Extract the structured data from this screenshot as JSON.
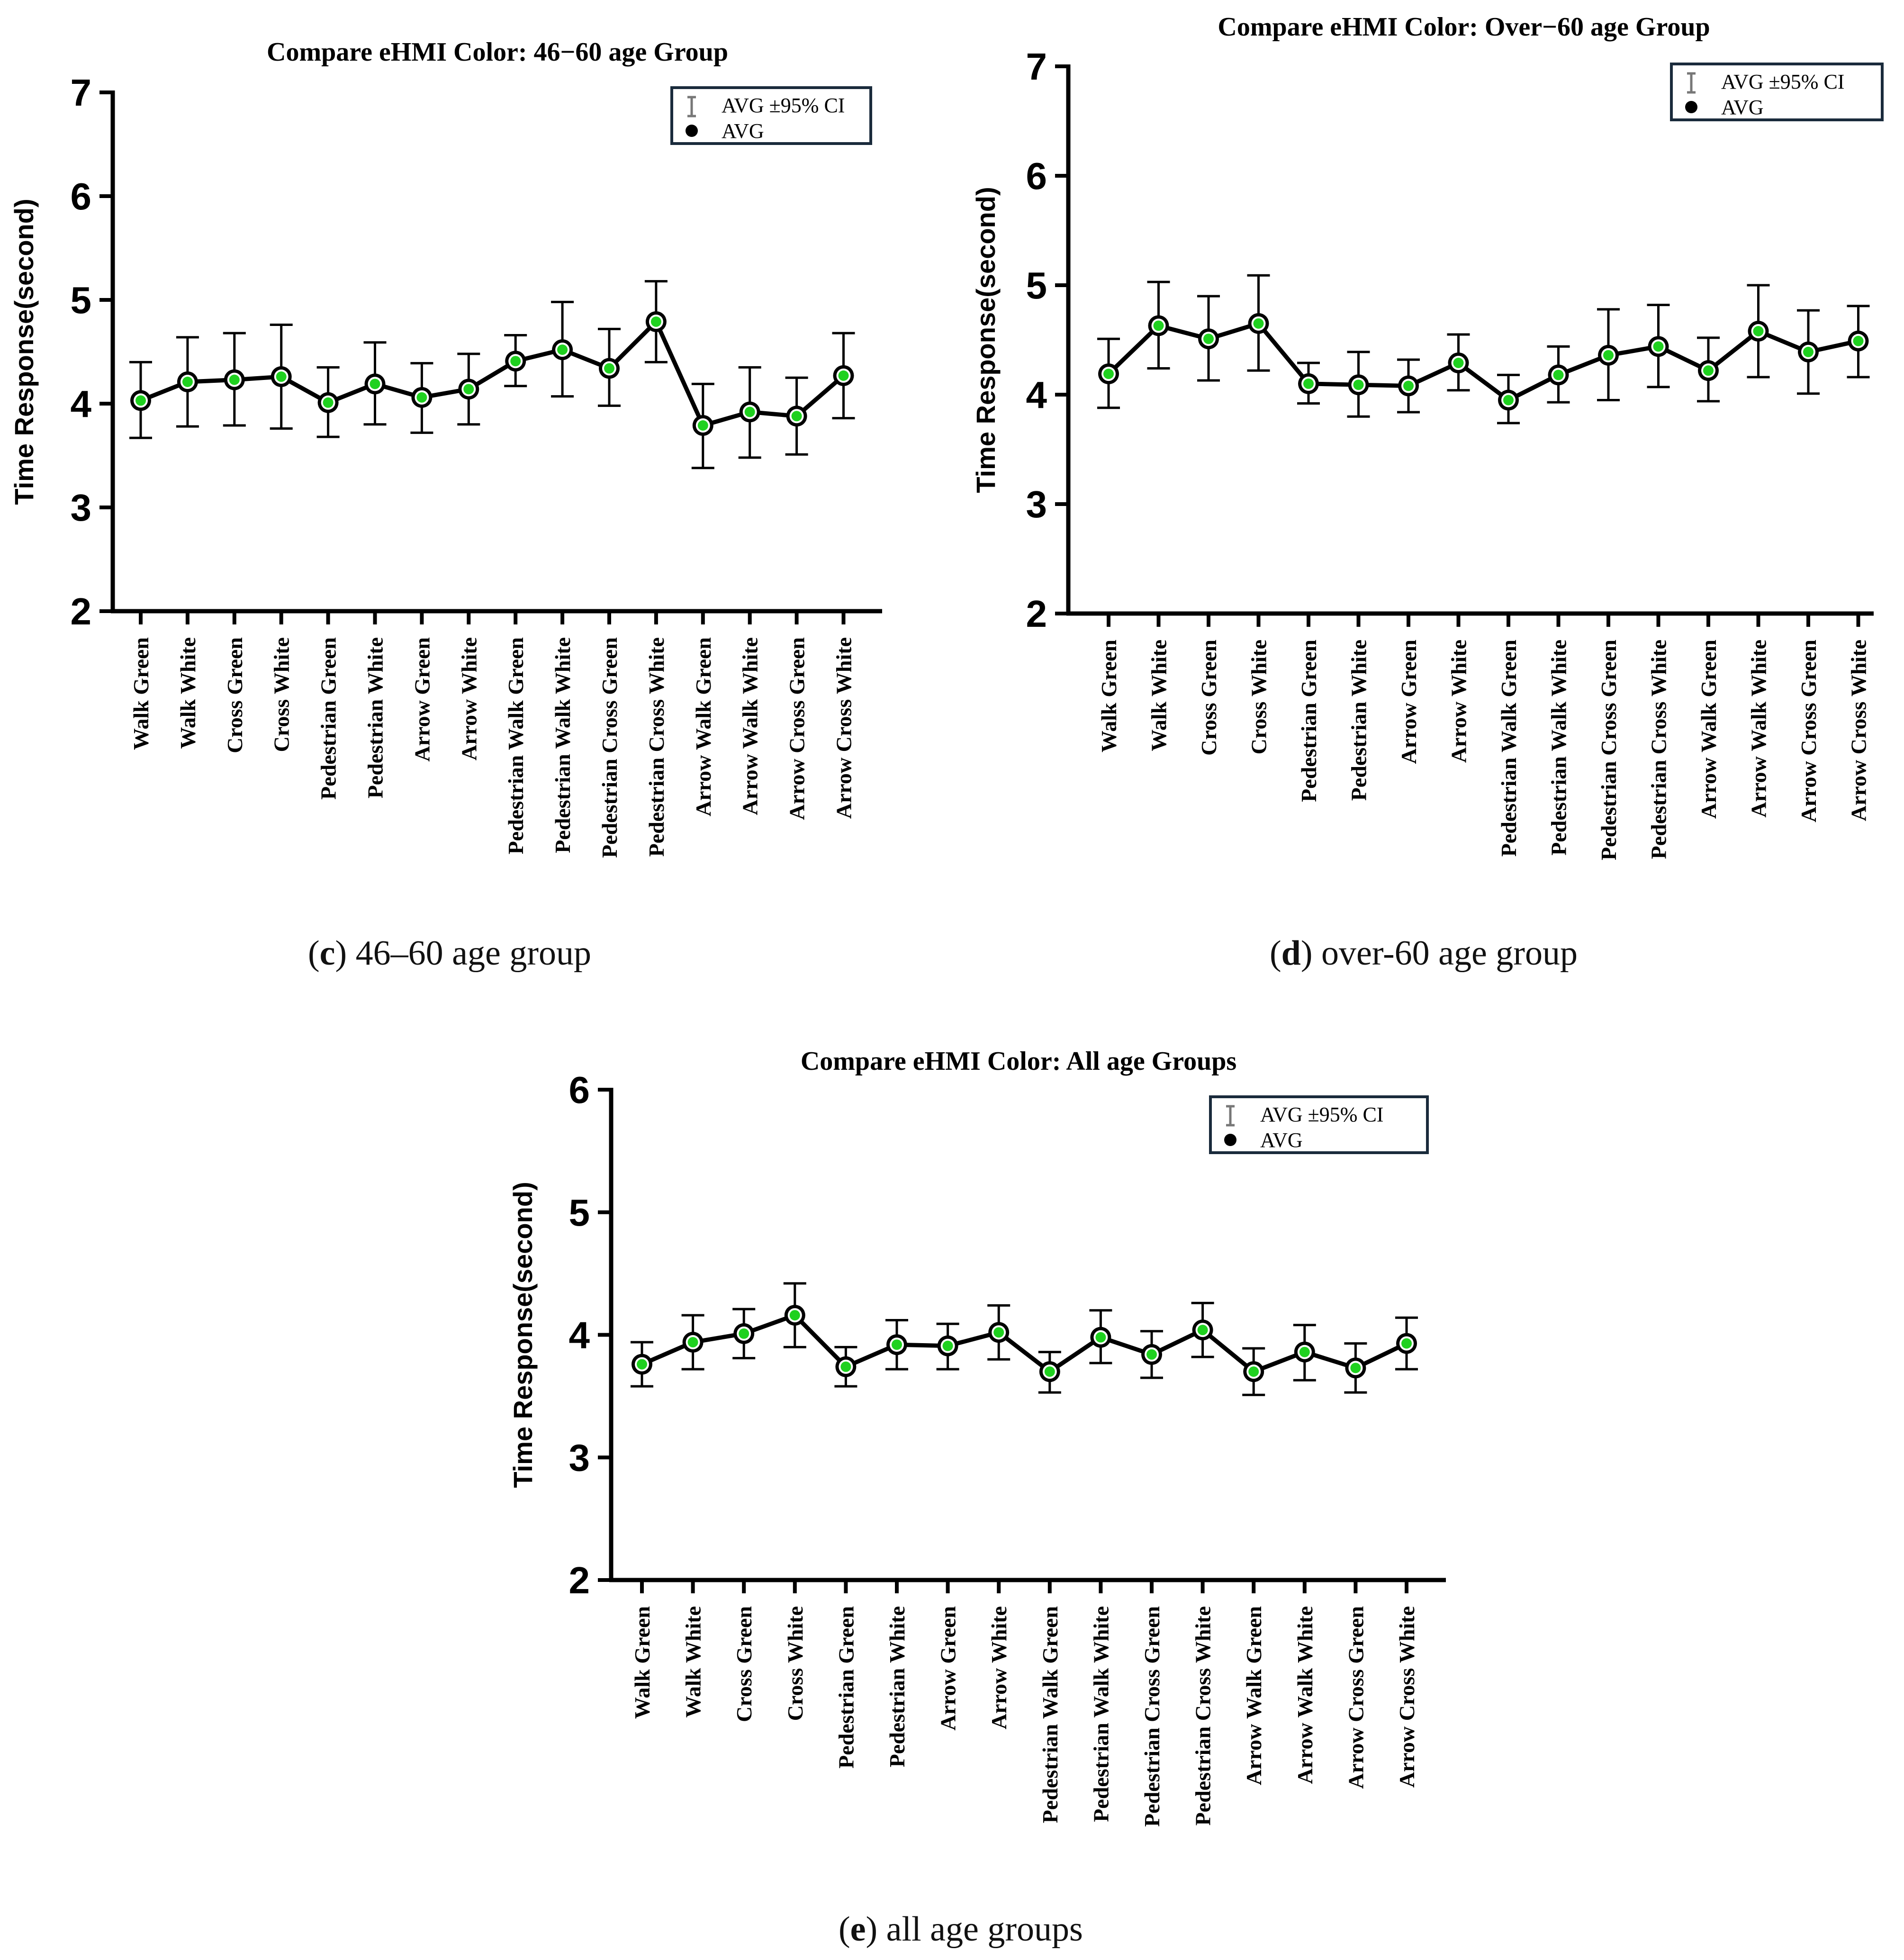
{
  "colors": {
    "axis": "#000000",
    "line": "#000000",
    "marker_fill": "#1fd11f",
    "marker_ring": "#000000",
    "marker_inner_ring": "#ffffff",
    "error_bar": "#000000",
    "legend_border": "#1a2b3c"
  },
  "categories": [
    "Walk Green",
    "Walk White",
    "Cross Green",
    "Cross White",
    "Pedestrian Green",
    "Pedestrian White",
    "Arrow  Green",
    "Arrow  White",
    "Pedestrian Walk Green",
    "Pedestrian Walk White",
    "Pedestrian Cross Green",
    "Pedestrian Cross White",
    "Arrow  Walk Green",
    "Arrow  Walk White",
    "Arrow Cross Green",
    "Arrow  Cross White"
  ],
  "legend": {
    "ci_label": "AVG ±95% CI",
    "avg_label": "AVG"
  },
  "chart_data": [
    {
      "id": "c",
      "type": "line",
      "title": "Compare eHMI Color: 46−60 age Group",
      "ylabel": "Time Response(second)",
      "xlabel": "",
      "ylim": [
        2,
        7
      ],
      "yticks": [
        2,
        3,
        4,
        5,
        6,
        7
      ],
      "caption_letter": "c",
      "caption_text": " 46–60 age group",
      "series": [
        {
          "name": "AVG",
          "values": [
            4.03,
            4.21,
            4.23,
            4.26,
            4.01,
            4.19,
            4.06,
            4.14,
            4.41,
            4.52,
            4.34,
            4.79,
            3.79,
            3.92,
            3.88,
            4.27
          ],
          "ci_low": [
            3.67,
            3.78,
            3.79,
            3.76,
            3.68,
            3.8,
            3.72,
            3.8,
            4.17,
            4.07,
            3.98,
            4.4,
            3.38,
            3.48,
            3.51,
            3.86
          ],
          "ci_high": [
            4.4,
            4.64,
            4.68,
            4.76,
            4.35,
            4.59,
            4.39,
            4.48,
            4.66,
            4.98,
            4.72,
            5.18,
            4.19,
            4.35,
            4.25,
            4.68
          ]
        }
      ]
    },
    {
      "id": "d",
      "type": "line",
      "title": "Compare eHMI Color:  Over−60 age Group",
      "ylabel": "Time Response(second)",
      "xlabel": "",
      "ylim": [
        2,
        7
      ],
      "yticks": [
        2,
        3,
        4,
        5,
        6,
        7
      ],
      "caption_letter": "d",
      "caption_text": " over-60 age group",
      "series": [
        {
          "name": "AVG",
          "values": [
            4.19,
            4.63,
            4.51,
            4.65,
            4.1,
            4.09,
            4.08,
            4.29,
            3.95,
            4.18,
            4.36,
            4.44,
            4.22,
            4.58,
            4.39,
            4.49
          ],
          "ci_low": [
            3.88,
            4.24,
            4.13,
            4.22,
            3.92,
            3.8,
            3.84,
            4.04,
            3.74,
            3.93,
            3.95,
            4.07,
            3.94,
            4.16,
            4.01,
            4.16
          ],
          "ci_high": [
            4.51,
            5.03,
            4.9,
            5.09,
            4.29,
            4.39,
            4.32,
            4.55,
            4.18,
            4.44,
            4.78,
            4.82,
            4.52,
            5.0,
            4.77,
            4.81
          ]
        }
      ]
    },
    {
      "id": "e",
      "type": "line",
      "title": "Compare eHMI Color: All age Groups",
      "ylabel": "Time Response(second)",
      "xlabel": "",
      "ylim": [
        2,
        6
      ],
      "yticks": [
        2,
        3,
        4,
        5,
        6
      ],
      "caption_letter": "e",
      "caption_text": " all age groups",
      "series": [
        {
          "name": "AVG",
          "values": [
            3.76,
            3.94,
            4.01,
            4.16,
            3.74,
            3.92,
            3.91,
            4.02,
            3.7,
            3.98,
            3.84,
            4.04,
            3.7,
            3.86,
            3.73,
            3.93
          ],
          "ci_low": [
            3.58,
            3.72,
            3.81,
            3.9,
            3.58,
            3.72,
            3.72,
            3.8,
            3.53,
            3.77,
            3.65,
            3.82,
            3.51,
            3.63,
            3.53,
            3.72
          ],
          "ci_high": [
            3.94,
            4.16,
            4.21,
            4.42,
            3.9,
            4.12,
            4.09,
            4.24,
            3.86,
            4.2,
            4.03,
            4.26,
            3.89,
            4.08,
            3.93,
            4.14
          ]
        }
      ]
    }
  ]
}
